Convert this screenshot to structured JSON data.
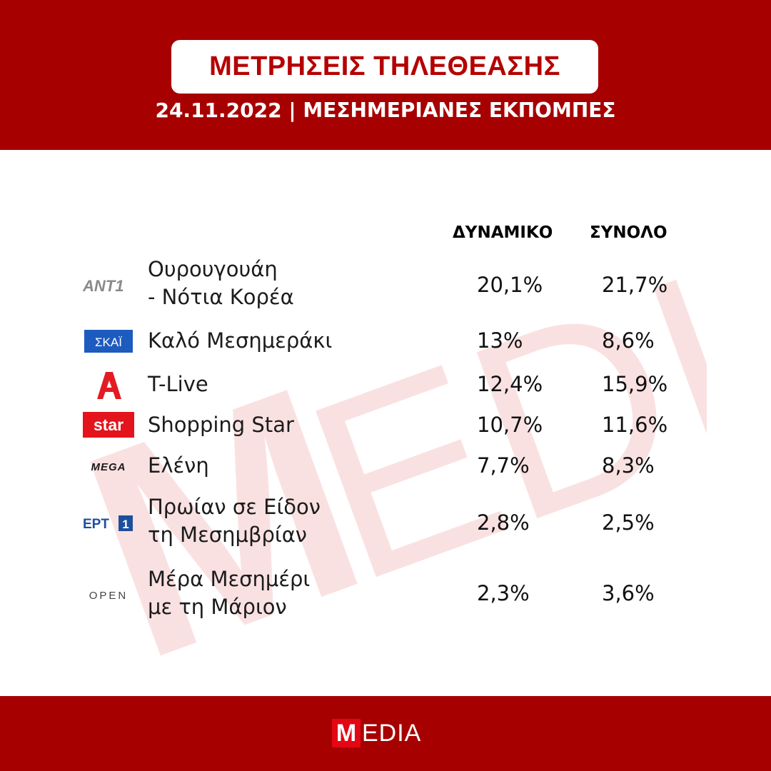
{
  "header": {
    "title": "ΜΕΤΡΗΣΕΙΣ ΤΗΛΕΘΕΑΣΗΣ",
    "subtitle": "24.11.2022 | ΜΕΣΗΜΕΡΙΑΝΕΣ ΕΚΠΟΜΠΕΣ"
  },
  "table": {
    "columns": [
      "ΔΥΝΑΜΙΚΟ",
      "ΣΥΝΟΛΟ"
    ],
    "rows": [
      {
        "channel_logo": "ant1-logo",
        "logo_text": "ANT1",
        "program_lines": [
          "Ουρουγουάη",
          "- Νότια Κορέα"
        ],
        "dynamiko": "20,1%",
        "synolo": "21,7%"
      },
      {
        "channel_logo": "skai-logo",
        "logo_text": "ΣΚΑΪ",
        "program_lines": [
          "Καλό Μεσημεράκι"
        ],
        "dynamiko": "13%",
        "synolo": "8,6%"
      },
      {
        "channel_logo": "alpha-logo",
        "logo_text": "",
        "program_lines": [
          "T-Live"
        ],
        "dynamiko": "12,4%",
        "synolo": "15,9%"
      },
      {
        "channel_logo": "star-logo",
        "logo_text": "star",
        "program_lines": [
          "Shopping Star"
        ],
        "dynamiko": "10,7%",
        "synolo": "11,6%"
      },
      {
        "channel_logo": "mega-logo",
        "logo_text": "MEGA",
        "program_lines": [
          "Ελένη"
        ],
        "dynamiko": "7,7%",
        "synolo": "8,3%"
      },
      {
        "channel_logo": "ert1-logo",
        "logo_text": "ΕΡΤ",
        "logo_text_2": "1",
        "program_lines": [
          "Πρωίαν σε Είδον",
          "τη Μεσημβρίαν"
        ],
        "dynamiko": "2,8%",
        "synolo": "2,5%"
      },
      {
        "channel_logo": "open-logo",
        "logo_text": "OPEN",
        "program_lines": [
          "Μέρα Μεσημέρι",
          "με τη Μάριον"
        ],
        "dynamiko": "2,3%",
        "synolo": "3,6%"
      }
    ]
  },
  "watermark": {
    "text_m": "M",
    "text_rest": "EDIA"
  },
  "footer": {
    "logo_m": "M",
    "logo_rest": "EDIA"
  },
  "colors": {
    "brand_red": "#a70000",
    "title_red": "#b50000",
    "logo_red": "#e30613"
  }
}
